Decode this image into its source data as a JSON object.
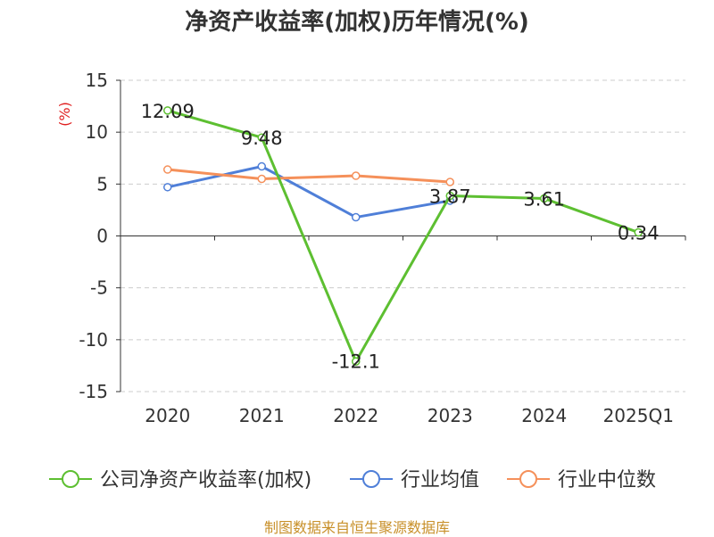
{
  "chart_data": {
    "type": "line",
    "title": "净资产收益率(加权)历年情况(%)",
    "ylabel": "(%)",
    "xlabel": "",
    "categories": [
      "2020",
      "2021",
      "2022",
      "2023",
      "2024",
      "2025Q1"
    ],
    "ylim": [
      -15,
      15
    ],
    "yticks": [
      15,
      10,
      5,
      0,
      -5,
      -10,
      -15
    ],
    "grid": true,
    "legend_position": "bottom",
    "series": [
      {
        "name": "公司净资产收益率(加权)",
        "color": "#5dbf31",
        "values": [
          12.09,
          9.48,
          -12.1,
          3.87,
          3.61,
          0.34
        ],
        "labels": [
          "12.09",
          "9.48",
          "-12.1",
          "3.87",
          "3.61",
          "0.34"
        ]
      },
      {
        "name": "行业均值",
        "color": "#4f7fd8",
        "values": [
          4.7,
          6.7,
          1.8,
          3.4,
          null,
          null
        ]
      },
      {
        "name": "行业中位数",
        "color": "#f5905a",
        "values": [
          6.4,
          5.5,
          5.8,
          5.2,
          null,
          null
        ]
      }
    ]
  },
  "source": "制图数据来自恒生聚源数据库"
}
